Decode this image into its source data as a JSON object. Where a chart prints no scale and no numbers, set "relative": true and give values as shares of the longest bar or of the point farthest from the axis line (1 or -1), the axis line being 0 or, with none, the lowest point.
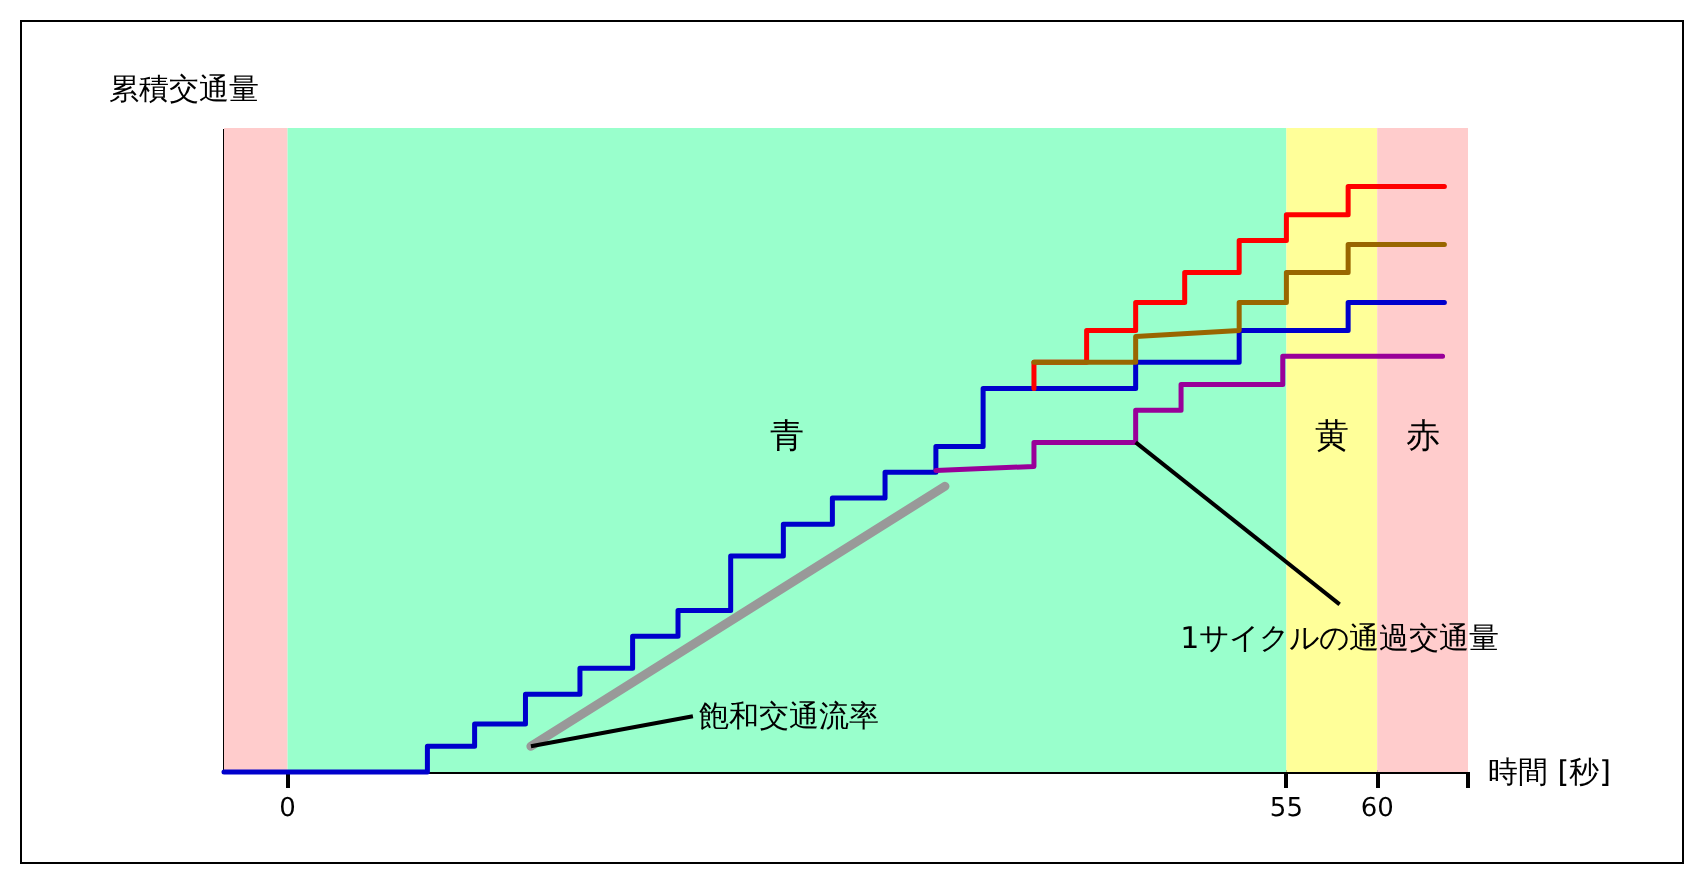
{
  "chart_data": {
    "type": "line",
    "relative": true,
    "xlabel": "時間 [秒]",
    "ylabel": "累積交通量",
    "xlim": [
      -3.5,
      65
    ],
    "xticks": [
      0,
      55,
      60,
      {
        "value": 65,
        "label": null
      }
    ],
    "series": [
      {
        "color": "#0000cc",
        "x": [
          -3.5,
          7.7,
          7.7,
          10.3,
          10.3,
          13.1,
          13.1,
          16.1,
          16.1,
          19.0,
          19.0,
          21.5,
          21.5,
          24.4,
          24.4,
          27.3,
          27.3,
          30.0,
          30.0,
          32.9,
          32.9,
          35.7,
          35.7,
          38.3,
          38.3,
          46.7,
          46.7,
          52.4,
          52.4,
          58.4,
          58.4,
          63.7
        ],
        "values": [
          0,
          0,
          0.044,
          0.044,
          0.082,
          0.082,
          0.133,
          0.133,
          0.177,
          0.177,
          0.232,
          0.232,
          0.276,
          0.276,
          0.369,
          0.369,
          0.423,
          0.423,
          0.468,
          0.468,
          0.512,
          0.512,
          0.556,
          0.556,
          0.655,
          0.655,
          0.7,
          0.7,
          0.754,
          0.754,
          0.802,
          0.802
        ]
      },
      {
        "color": "#ff0000",
        "x": [
          41.1,
          41.1,
          44.0,
          44.0,
          46.7,
          46.7,
          49.4,
          49.4,
          52.4,
          52.4,
          55,
          55,
          58.4,
          58.4,
          63.7
        ],
        "values": [
          0.655,
          0.7,
          0.7,
          0.754,
          0.754,
          0.802,
          0.802,
          0.853,
          0.853,
          0.908,
          0.908,
          0.952,
          0.952,
          1,
          1
        ]
      },
      {
        "color": "#996600",
        "x": [
          41.1,
          46.7,
          46.7,
          52.4,
          52.4,
          55,
          55,
          58.4,
          58.4,
          63.7
        ],
        "values": [
          0.7,
          0.7,
          0.744,
          0.754,
          0.802,
          0.802,
          0.853,
          0.853,
          0.901,
          0.901
        ]
      },
      {
        "color": "#990099",
        "x": [
          35.7,
          41.1,
          41.1,
          46.7,
          46.7,
          49.2,
          49.2,
          54.8,
          54.8,
          63.6
        ],
        "values": [
          0.515,
          0.522,
          0.563,
          0.563,
          0.618,
          0.618,
          0.662,
          0.662,
          0.71,
          0.71
        ]
      },
      {
        "color": "#999999",
        "x": [
          13.4,
          36.2
        ],
        "values": [
          0.044,
          0.488
        ]
      }
    ],
    "bands": [
      {
        "axis": "x",
        "from": -3.5,
        "to": 0,
        "label": null,
        "color": "#ffcccc"
      },
      {
        "axis": "x",
        "from": 0,
        "to": 55,
        "label": "青",
        "color": "#99ffcc"
      },
      {
        "axis": "x",
        "from": 55,
        "to": 60,
        "label": "黄",
        "color": "#ffff99"
      },
      {
        "axis": "x",
        "from": 60,
        "to": 65,
        "label": "赤",
        "color": "#ffcccc"
      }
    ],
    "annotations": [
      {
        "text": "飽和交通流率",
        "x": 13.4,
        "y": 0.044
      },
      {
        "text": "1サイクルの通過交通量",
        "x": 46.7,
        "y": 0.563
      }
    ],
    "grid": false,
    "line_style": "solid",
    "marker": "none"
  }
}
